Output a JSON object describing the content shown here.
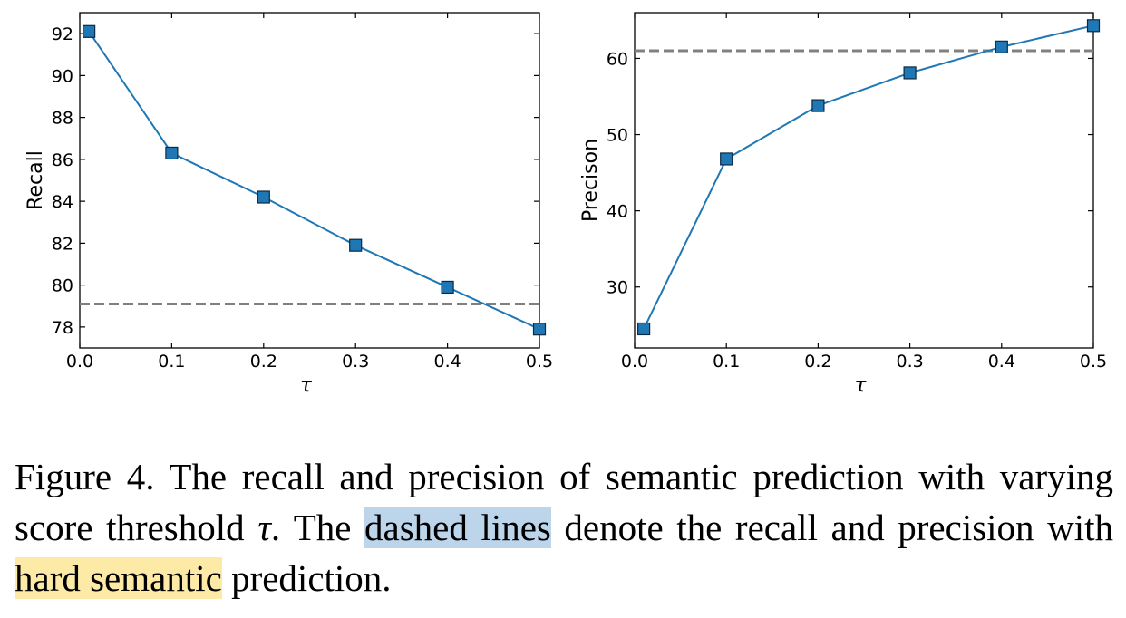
{
  "chart_data": [
    {
      "type": "line",
      "x": [
        0.01,
        0.1,
        0.2,
        0.3,
        0.4,
        0.5
      ],
      "series": [
        {
          "values": [
            92.1,
            86.3,
            84.2,
            81.9,
            79.9,
            77.9
          ],
          "color": "#1f77b4",
          "marker": "square"
        }
      ],
      "reference_line": {
        "value": 79.1,
        "style": "dashed",
        "color": "#808080"
      },
      "xlabel": "τ",
      "ylabel": "Recall",
      "xlim": [
        0.0,
        0.5
      ],
      "ylim": [
        77.0,
        93.0
      ],
      "xticks": [
        0.0,
        0.1,
        0.2,
        0.3,
        0.4,
        0.5
      ],
      "xtick_labels": [
        "0.0",
        "0.1",
        "0.2",
        "0.3",
        "0.4",
        "0.5"
      ],
      "yticks": [
        78,
        80,
        82,
        84,
        86,
        88,
        90,
        92
      ],
      "ytick_labels": [
        "78",
        "80",
        "82",
        "84",
        "86",
        "88",
        "90",
        "92"
      ],
      "grid": false
    },
    {
      "type": "line",
      "x": [
        0.01,
        0.1,
        0.2,
        0.3,
        0.4,
        0.5
      ],
      "series": [
        {
          "values": [
            24.5,
            46.8,
            53.8,
            58.1,
            61.5,
            64.3
          ],
          "color": "#1f77b4",
          "marker": "square"
        }
      ],
      "reference_line": {
        "value": 61.0,
        "style": "dashed",
        "color": "#808080"
      },
      "xlabel": "τ",
      "ylabel": "Precison",
      "xlim": [
        0.0,
        0.5
      ],
      "ylim": [
        22.0,
        66.0
      ],
      "xticks": [
        0.0,
        0.1,
        0.2,
        0.3,
        0.4,
        0.5
      ],
      "xtick_labels": [
        "0.0",
        "0.1",
        "0.2",
        "0.3",
        "0.4",
        "0.5"
      ],
      "yticks": [
        30,
        40,
        50,
        60
      ],
      "ytick_labels": [
        "30",
        "40",
        "50",
        "60"
      ],
      "grid": false
    }
  ],
  "caption": {
    "part1": "Figure 4.  The recall and precision of semantic prediction with varying score threshold ",
    "tau": "τ",
    "part2": ". The ",
    "highlight_blue": "dashed lines",
    "part3": " denote the recall and precision with ",
    "highlight_yellow": "hard semantic",
    "part4": " prediction.",
    "highlight_colors": {
      "blue": "#bcd5ea",
      "yellow": "#fdeaa6"
    }
  }
}
